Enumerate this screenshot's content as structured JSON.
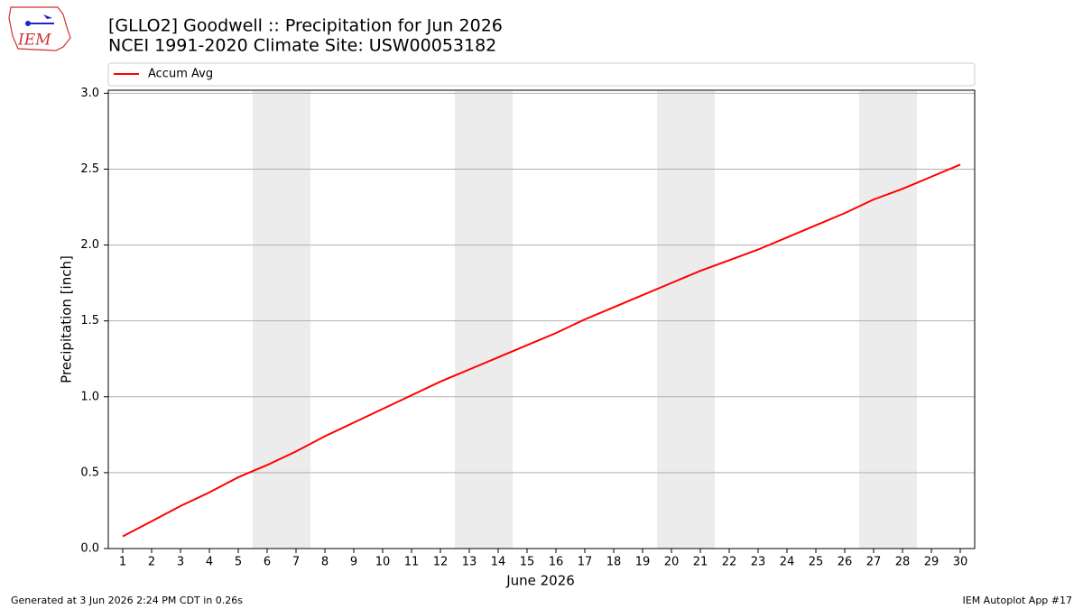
{
  "logo_text": "IEM",
  "footer_left": "Generated at 3 Jun 2026 2:24 PM CDT in 0.26s",
  "footer_right": "IEM Autoplot App #17",
  "chart_data": {
    "type": "line",
    "title": "[GLLO2] Goodwell :: Precipitation for Jun 2026",
    "subtitle": "NCEI 1991-2020 Climate Site: USW00053182",
    "x_label": "June 2026",
    "y_label": "Precipitation [inch]",
    "x": [
      1,
      2,
      3,
      4,
      5,
      6,
      7,
      8,
      9,
      10,
      11,
      12,
      13,
      14,
      15,
      16,
      17,
      18,
      19,
      20,
      21,
      22,
      23,
      24,
      25,
      26,
      27,
      28,
      29,
      30
    ],
    "series": [
      {
        "name": "Accum Avg",
        "color": "#ff0000",
        "values": [
          0.08,
          0.18,
          0.28,
          0.37,
          0.47,
          0.55,
          0.64,
          0.74,
          0.83,
          0.92,
          1.01,
          1.1,
          1.18,
          1.26,
          1.34,
          1.42,
          1.51,
          1.59,
          1.67,
          1.75,
          1.83,
          1.9,
          1.97,
          2.05,
          2.13,
          2.21,
          2.3,
          2.37,
          2.45,
          2.53
        ]
      }
    ],
    "xlim": [
      0.5,
      30.5
    ],
    "xticks": [
      1,
      2,
      3,
      4,
      5,
      6,
      7,
      8,
      9,
      10,
      11,
      12,
      13,
      14,
      15,
      16,
      17,
      18,
      19,
      20,
      21,
      22,
      23,
      24,
      25,
      26,
      27,
      28,
      29,
      30
    ],
    "ylim": [
      0,
      3.02
    ],
    "yticks": [
      {
        "value": 0,
        "label": "0.0"
      },
      0.5,
      {
        "value": 1,
        "label": "1.0"
      },
      1.5,
      {
        "value": 2,
        "label": "2.0"
      },
      2.5,
      {
        "value": 3,
        "label": "3.0"
      }
    ],
    "shaded_spans": [
      [
        5.5,
        7.5
      ],
      [
        12.5,
        14.5
      ],
      [
        19.5,
        21.5
      ],
      [
        26.5,
        28.5
      ]
    ],
    "shade_color": "#ececec",
    "grid": true,
    "legend": "top"
  }
}
